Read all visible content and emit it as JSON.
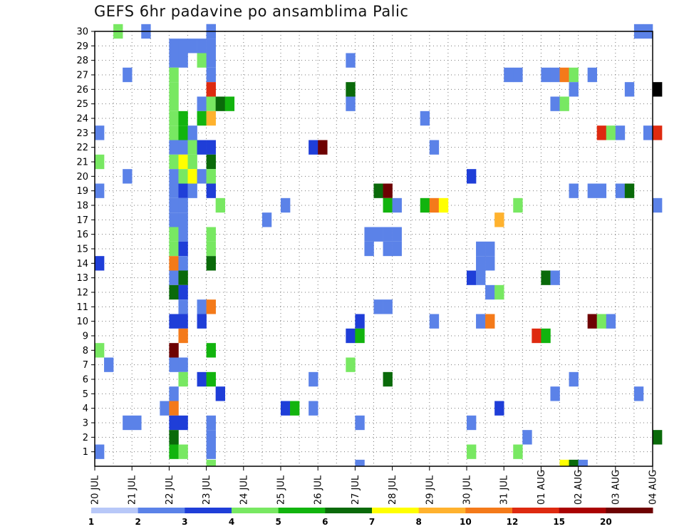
{
  "chart_data": {
    "type": "heatmap",
    "title": "GEFS 6hr padavine po ansamblima Palic",
    "x_tick_labels": [
      "20 JUL",
      "21 JUL",
      "22 JUL",
      "23 JUL",
      "24 JUL",
      "25 JUL",
      "26 JUL",
      "27 JUL",
      "28 JUL",
      "29 JUL",
      "30 JUL",
      "31 JUL",
      "01 AUG",
      "02 AUG",
      "03 AUG",
      "04 AUG"
    ],
    "y_tick_labels": [
      "1",
      "2",
      "3",
      "4",
      "5",
      "6",
      "7",
      "8",
      "9",
      "10",
      "11",
      "12",
      "13",
      "14",
      "15",
      "16",
      "17",
      "18",
      "19",
      "20",
      "21",
      "22",
      "23",
      "24",
      "25",
      "26",
      "27",
      "28",
      "29",
      "30"
    ],
    "x_range": [
      "20 JUL 00Z",
      "04 AUG 00Z"
    ],
    "time_step": "6hr",
    "y_range": [
      0,
      30
    ],
    "grid": true,
    "legend": {
      "placement": "bottom",
      "colors": [
        "#b8c8f8",
        "#5b82e8",
        "#1f3ed8",
        "#78e862",
        "#12b40e",
        "#0a6a0a",
        "#ffff00",
        "#ffb22e",
        "#f47a1a",
        "#de2a10",
        "#aa0202",
        "#6e0202"
      ],
      "labels": [
        "1",
        "2",
        "3",
        "4",
        "5",
        "6",
        "7",
        "8",
        "10",
        "12",
        "15",
        "20"
      ]
    },
    "cells": [
      [
        2,
        30,
        3
      ],
      [
        5,
        30,
        1
      ],
      [
        12,
        30,
        1
      ],
      [
        12,
        30,
        1
      ],
      [
        58,
        30,
        1
      ],
      [
        59,
        30,
        1
      ],
      [
        8,
        29,
        1
      ],
      [
        9,
        29,
        1
      ],
      [
        10,
        29,
        1
      ],
      [
        11,
        29,
        1
      ],
      [
        12,
        29,
        1
      ],
      [
        8,
        28,
        1
      ],
      [
        9,
        28,
        1
      ],
      [
        11,
        28,
        3
      ],
      [
        12,
        28,
        1
      ],
      [
        27,
        28,
        1
      ],
      [
        3,
        27,
        1
      ],
      [
        8,
        27,
        3
      ],
      [
        12,
        27,
        1
      ],
      [
        44,
        27,
        1
      ],
      [
        45,
        27,
        1
      ],
      [
        48,
        27,
        1
      ],
      [
        49,
        27,
        1
      ],
      [
        50,
        27,
        8
      ],
      [
        51,
        27,
        3
      ],
      [
        53,
        27,
        1
      ],
      [
        8,
        26,
        3
      ],
      [
        12,
        26,
        9
      ],
      [
        27,
        26,
        5
      ],
      [
        51,
        26,
        1
      ],
      [
        57,
        26,
        1
      ],
      [
        60,
        26,
        12
      ],
      [
        8,
        25,
        3
      ],
      [
        11,
        25,
        1
      ],
      [
        12,
        25,
        3
      ],
      [
        13,
        25,
        5
      ],
      [
        14,
        25,
        4
      ],
      [
        27,
        25,
        1
      ],
      [
        49,
        25,
        1
      ],
      [
        50,
        25,
        3
      ],
      [
        8,
        24,
        3
      ],
      [
        9,
        24,
        4
      ],
      [
        11,
        24,
        4
      ],
      [
        12,
        24,
        7
      ],
      [
        35,
        24,
        1
      ],
      [
        0,
        23,
        1
      ],
      [
        8,
        23,
        3
      ],
      [
        9,
        23,
        4
      ],
      [
        10,
        23,
        1
      ],
      [
        54,
        23,
        9
      ],
      [
        55,
        23,
        3
      ],
      [
        56,
        23,
        1
      ],
      [
        59,
        23,
        1
      ],
      [
        60,
        23,
        9
      ],
      [
        8,
        22,
        1
      ],
      [
        9,
        22,
        1
      ],
      [
        10,
        22,
        3
      ],
      [
        11,
        22,
        2
      ],
      [
        12,
        22,
        2
      ],
      [
        23,
        22,
        2
      ],
      [
        24,
        22,
        11
      ],
      [
        36,
        22,
        1
      ],
      [
        0,
        21,
        3
      ],
      [
        8,
        21,
        3
      ],
      [
        9,
        21,
        6
      ],
      [
        10,
        21,
        3
      ],
      [
        12,
        21,
        5
      ],
      [
        3,
        20,
        1
      ],
      [
        8,
        20,
        1
      ],
      [
        9,
        20,
        3
      ],
      [
        10,
        20,
        6
      ],
      [
        11,
        20,
        1
      ],
      [
        12,
        20,
        3
      ],
      [
        40,
        20,
        2
      ],
      [
        0,
        19,
        1
      ],
      [
        8,
        19,
        1
      ],
      [
        9,
        19,
        2
      ],
      [
        10,
        19,
        1
      ],
      [
        12,
        19,
        2
      ],
      [
        30,
        19,
        5
      ],
      [
        31,
        19,
        11
      ],
      [
        51,
        19,
        1
      ],
      [
        53,
        19,
        1
      ],
      [
        54,
        19,
        1
      ],
      [
        56,
        19,
        1
      ],
      [
        57,
        19,
        5
      ],
      [
        8,
        18,
        1
      ],
      [
        9,
        18,
        1
      ],
      [
        13,
        18,
        3
      ],
      [
        20,
        18,
        1
      ],
      [
        31,
        18,
        4
      ],
      [
        32,
        18,
        1
      ],
      [
        35,
        18,
        4
      ],
      [
        36,
        18,
        8
      ],
      [
        37,
        18,
        6
      ],
      [
        45,
        18,
        3
      ],
      [
        60,
        18,
        1
      ],
      [
        8,
        17,
        1
      ],
      [
        9,
        17,
        1
      ],
      [
        18,
        17,
        1
      ],
      [
        43,
        17,
        7
      ],
      [
        8,
        16,
        3
      ],
      [
        9,
        16,
        1
      ],
      [
        12,
        16,
        3
      ],
      [
        29,
        16,
        1
      ],
      [
        30,
        16,
        1
      ],
      [
        31,
        16,
        1
      ],
      [
        32,
        16,
        1
      ],
      [
        8,
        15,
        3
      ],
      [
        9,
        15,
        2
      ],
      [
        12,
        15,
        3
      ],
      [
        29,
        15,
        1
      ],
      [
        31,
        15,
        1
      ],
      [
        32,
        15,
        1
      ],
      [
        41,
        15,
        1
      ],
      [
        42,
        15,
        1
      ],
      [
        0,
        14,
        2
      ],
      [
        8,
        14,
        8
      ],
      [
        9,
        14,
        1
      ],
      [
        12,
        14,
        5
      ],
      [
        41,
        14,
        1
      ],
      [
        42,
        14,
        1
      ],
      [
        8,
        13,
        1
      ],
      [
        9,
        13,
        5
      ],
      [
        40,
        13,
        2
      ],
      [
        41,
        13,
        1
      ],
      [
        48,
        13,
        5
      ],
      [
        49,
        13,
        1
      ],
      [
        8,
        12,
        5
      ],
      [
        9,
        12,
        2
      ],
      [
        42,
        12,
        1
      ],
      [
        43,
        12,
        3
      ],
      [
        9,
        11,
        1
      ],
      [
        11,
        11,
        1
      ],
      [
        12,
        11,
        8
      ],
      [
        30,
        11,
        1
      ],
      [
        31,
        11,
        1
      ],
      [
        8,
        10,
        2
      ],
      [
        9,
        10,
        2
      ],
      [
        11,
        10,
        2
      ],
      [
        28,
        10,
        2
      ],
      [
        36,
        10,
        1
      ],
      [
        41,
        10,
        1
      ],
      [
        42,
        10,
        8
      ],
      [
        53,
        10,
        11
      ],
      [
        54,
        10,
        3
      ],
      [
        55,
        10,
        1
      ],
      [
        9,
        9,
        8
      ],
      [
        27,
        9,
        2
      ],
      [
        28,
        9,
        4
      ],
      [
        47,
        9,
        9
      ],
      [
        48,
        9,
        4
      ],
      [
        0,
        8,
        3
      ],
      [
        8,
        8,
        11
      ],
      [
        12,
        8,
        4
      ],
      [
        1,
        7,
        1
      ],
      [
        8,
        7,
        1
      ],
      [
        9,
        7,
        1
      ],
      [
        27,
        7,
        3
      ],
      [
        9,
        6,
        3
      ],
      [
        11,
        6,
        2
      ],
      [
        12,
        6,
        4
      ],
      [
        23,
        6,
        1
      ],
      [
        31,
        6,
        5
      ],
      [
        51,
        6,
        1
      ],
      [
        8,
        5,
        1
      ],
      [
        13,
        5,
        2
      ],
      [
        49,
        5,
        1
      ],
      [
        58,
        5,
        1
      ],
      [
        7,
        4,
        1
      ],
      [
        8,
        4,
        8
      ],
      [
        20,
        4,
        2
      ],
      [
        21,
        4,
        4
      ],
      [
        23,
        4,
        1
      ],
      [
        43,
        4,
        2
      ],
      [
        3,
        3,
        1
      ],
      [
        4,
        3,
        1
      ],
      [
        8,
        3,
        2
      ],
      [
        9,
        3,
        2
      ],
      [
        12,
        3,
        1
      ],
      [
        28,
        3,
        1
      ],
      [
        40,
        3,
        1
      ],
      [
        8,
        2,
        5
      ],
      [
        12,
        2,
        1
      ],
      [
        46,
        2,
        1
      ],
      [
        60,
        2,
        5
      ],
      [
        0,
        1,
        1
      ],
      [
        8,
        1,
        4
      ],
      [
        9,
        1,
        3
      ],
      [
        12,
        1,
        1
      ],
      [
        40,
        1,
        3
      ],
      [
        45,
        1,
        3
      ],
      [
        12,
        0,
        3
      ],
      [
        28,
        0,
        1
      ],
      [
        50,
        0,
        6
      ],
      [
        51,
        0,
        5
      ],
      [
        52,
        0,
        1
      ]
    ]
  }
}
